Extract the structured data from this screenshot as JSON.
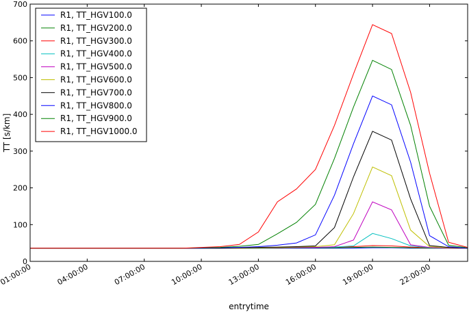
{
  "chart_data": {
    "type": "line",
    "xlabel": "entrytime",
    "ylabel": "TT [s/km]",
    "x_ticks": [
      "01:00:00",
      "04:00:00",
      "07:00:00",
      "10:00:00",
      "13:00:00",
      "16:00:00",
      "19:00:00",
      "22:00:00"
    ],
    "x_range": [
      "01:00",
      "24:00"
    ],
    "y_ticks": [
      0,
      100,
      200,
      300,
      400,
      500,
      600,
      700
    ],
    "ylim": [
      0,
      700
    ],
    "grid": false,
    "legend_position": "top-left",
    "x": [
      "01:00",
      "02:00",
      "03:00",
      "04:00",
      "05:00",
      "06:00",
      "07:00",
      "08:00",
      "09:00",
      "10:00",
      "11:00",
      "12:00",
      "13:00",
      "14:00",
      "15:00",
      "16:00",
      "17:00",
      "18:00",
      "19:00",
      "20:00",
      "21:00",
      "22:00",
      "23:00",
      "24:00"
    ],
    "series": [
      {
        "name": "R1, TT_HGV100.0",
        "color": "#0000ff",
        "values": [
          36,
          36,
          36,
          36,
          36,
          36,
          36,
          36,
          36,
          36,
          36,
          36,
          36,
          36,
          36,
          36,
          36,
          36,
          37,
          37,
          36,
          36,
          36,
          36
        ]
      },
      {
        "name": "R1, TT_HGV200.0",
        "color": "#008000",
        "values": [
          36,
          36,
          36,
          36,
          36,
          36,
          36,
          36,
          36,
          36,
          36,
          36,
          36,
          36,
          37,
          37,
          37,
          38,
          39,
          38,
          37,
          36,
          36,
          36
        ]
      },
      {
        "name": "R1, TT_HGV300.0",
        "color": "#ff0000",
        "values": [
          36,
          36,
          36,
          36,
          36,
          36,
          36,
          36,
          36,
          36,
          36,
          36,
          37,
          37,
          38,
          38,
          39,
          40,
          43,
          42,
          39,
          37,
          36,
          36
        ]
      },
      {
        "name": "R1, TT_HGV400.0",
        "color": "#00bfbf",
        "values": [
          36,
          36,
          36,
          36,
          36,
          36,
          36,
          36,
          36,
          36,
          36,
          36,
          37,
          37,
          38,
          38,
          39,
          42,
          76,
          62,
          42,
          37,
          36,
          36
        ]
      },
      {
        "name": "R1, TT_HGV500.0",
        "color": "#bf00bf",
        "values": [
          36,
          36,
          36,
          36,
          36,
          36,
          36,
          36,
          36,
          36,
          36,
          36,
          37,
          37,
          38,
          38,
          40,
          58,
          162,
          140,
          45,
          38,
          36,
          36
        ]
      },
      {
        "name": "R1, TT_HGV600.0",
        "color": "#bfbf00",
        "values": [
          36,
          36,
          36,
          36,
          36,
          36,
          36,
          36,
          36,
          36,
          36,
          36,
          37,
          38,
          39,
          40,
          45,
          130,
          257,
          233,
          85,
          40,
          37,
          36
        ]
      },
      {
        "name": "R1, TT_HGV700.0",
        "color": "#000000",
        "values": [
          36,
          36,
          36,
          36,
          36,
          36,
          36,
          36,
          36,
          36,
          36,
          37,
          38,
          39,
          40,
          42,
          92,
          230,
          354,
          330,
          170,
          43,
          38,
          36
        ]
      },
      {
        "name": "R1, TT_HGV800.0",
        "color": "#0000ff",
        "values": [
          36,
          36,
          36,
          36,
          36,
          36,
          36,
          36,
          36,
          36,
          37,
          38,
          40,
          44,
          50,
          72,
          180,
          320,
          450,
          426,
          270,
          70,
          40,
          36
        ]
      },
      {
        "name": "R1, TT_HGV900.0",
        "color": "#008000",
        "values": [
          36,
          36,
          36,
          36,
          36,
          36,
          36,
          36,
          36,
          37,
          38,
          41,
          46,
          75,
          106,
          155,
          280,
          420,
          547,
          522,
          370,
          150,
          44,
          37
        ]
      },
      {
        "name": "R1, TT_HGV1000.0",
        "color": "#ff0000",
        "values": [
          36,
          36,
          36,
          36,
          36,
          36,
          36,
          36,
          36,
          38,
          40,
          46,
          80,
          162,
          197,
          250,
          370,
          510,
          644,
          620,
          460,
          240,
          52,
          38
        ]
      }
    ]
  }
}
